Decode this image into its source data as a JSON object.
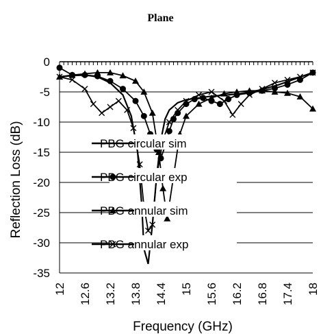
{
  "chart_data": {
    "type": "line",
    "title": "Plane",
    "xlabel": "Frequency (GHz)",
    "ylabel": "Reflection Loss (dB)",
    "xlim": [
      12,
      18
    ],
    "ylim": [
      -35,
      0
    ],
    "x_ticks": [
      "12",
      "12.6",
      "13.2",
      "13.8",
      "14.4",
      "15",
      "15.6",
      "16.2",
      "16.8",
      "17.4",
      "18"
    ],
    "y_ticks": [
      "0",
      "-5",
      "-10",
      "-15",
      "-20",
      "-25",
      "-30",
      "-35"
    ],
    "grid": true,
    "legend_position": "center",
    "series": [
      {
        "name": "PBG circular sim",
        "marker": "line",
        "x": [
          12,
          12.3,
          12.6,
          12.9,
          13.2,
          13.5,
          13.7,
          13.85,
          13.95,
          14.0,
          14.1,
          14.2,
          14.3,
          14.4,
          14.5,
          14.6,
          14.8,
          15,
          15.3,
          15.6,
          16,
          16.4,
          16.8,
          17.2,
          17.6,
          18
        ],
        "y": [
          -2.5,
          -2.3,
          -2.2,
          -2.5,
          -3.5,
          -5.5,
          -9,
          -15,
          -24,
          -31,
          -33.5,
          -27,
          -19,
          -13,
          -9.5,
          -8,
          -6.8,
          -6.3,
          -6,
          -5.7,
          -5.5,
          -5.2,
          -4.6,
          -3.8,
          -2.8,
          -1.8
        ]
      },
      {
        "name": "PBG circular exp",
        "marker": "circle",
        "x": [
          12,
          12.3,
          12.6,
          12.9,
          13.2,
          13.5,
          13.8,
          14.0,
          14.15,
          14.3,
          14.4,
          14.5,
          14.6,
          14.7,
          14.8,
          15,
          15.2,
          15.4,
          15.6,
          15.8,
          16.0,
          16.2,
          16.5,
          16.8,
          17.1,
          17.4,
          17.7,
          18
        ],
        "y": [
          -1,
          -2.2,
          -2.2,
          -2.4,
          -3.2,
          -4.5,
          -6.5,
          -9,
          -12,
          -14.5,
          -16,
          -14,
          -11.5,
          -9.5,
          -8.5,
          -7,
          -6.2,
          -6,
          -6.5,
          -7,
          -6.2,
          -5.5,
          -5.2,
          -4.8,
          -4.4,
          -3.8,
          -3,
          -1.8
        ]
      },
      {
        "name": "PBG annular sim",
        "marker": "triangle",
        "x": [
          12,
          12.3,
          12.6,
          12.9,
          13.2,
          13.5,
          13.8,
          14.0,
          14.2,
          14.35,
          14.45,
          14.55,
          14.7,
          14.85,
          15,
          15.3,
          15.6,
          15.9,
          16.2,
          16.5,
          16.8,
          17.1,
          17.4,
          17.7,
          18
        ],
        "y": [
          -2.5,
          -2.2,
          -2,
          -1.8,
          -1.8,
          -2.3,
          -3.2,
          -5,
          -8.5,
          -15,
          -21,
          -26,
          -19,
          -12,
          -9,
          -7,
          -6,
          -5.3,
          -5,
          -4.8,
          -4.8,
          -5,
          -5.2,
          -5.8,
          -7.8
        ]
      },
      {
        "name": "PBG annular exp",
        "marker": "x",
        "x": [
          12,
          12.3,
          12.6,
          12.8,
          13.0,
          13.2,
          13.4,
          13.6,
          13.75,
          13.9,
          14.0,
          14.1,
          14.2,
          14.3,
          14.45,
          14.6,
          14.8,
          15,
          15.3,
          15.6,
          15.9,
          16.1,
          16.3,
          16.5,
          16.8,
          17.1,
          17.4,
          17.7,
          18
        ],
        "y": [
          -2.5,
          -3,
          -4.5,
          -7,
          -8.5,
          -7.5,
          -6.5,
          -8,
          -11,
          -17,
          -24,
          -28,
          -27,
          -19,
          -13,
          -10,
          -8,
          -6.5,
          -5.5,
          -5,
          -6.5,
          -8.8,
          -7,
          -5.5,
          -4.5,
          -3.5,
          -3,
          -2.5,
          -1.8
        ]
      }
    ]
  }
}
